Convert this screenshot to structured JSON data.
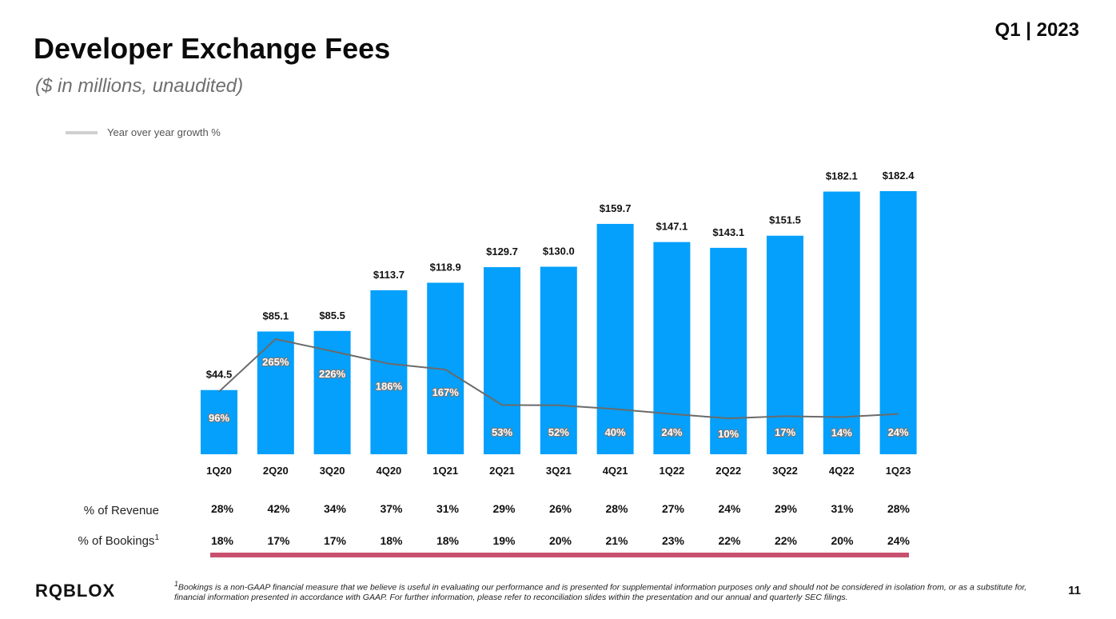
{
  "header": {
    "title": "Developer Exchange Fees",
    "subtitle": "($ in millions, unaudited)",
    "period": "Q1 | 2023"
  },
  "colors": {
    "bar": "#04a0fb",
    "growth_line": "#6b6b6b",
    "legend_line": "#d0d0d0",
    "underline": "#c8506e"
  },
  "chart_data": {
    "type": "bar",
    "title": "Developer Exchange Fees",
    "categories": [
      "1Q20",
      "2Q20",
      "3Q20",
      "4Q20",
      "1Q21",
      "2Q21",
      "3Q21",
      "4Q21",
      "1Q22",
      "2Q22",
      "3Q22",
      "4Q22",
      "1Q23"
    ],
    "series": [
      {
        "values": [
          44.5,
          85.1,
          85.5,
          113.7,
          118.9,
          129.7,
          130.0,
          159.7,
          147.1,
          143.1,
          151.5,
          182.1,
          182.4
        ],
        "labels": [
          "$44.5",
          "$85.1",
          "$85.5",
          "$113.7",
          "$118.9",
          "$129.7",
          "$130.0",
          "$159.7",
          "$147.1",
          "$143.1",
          "$151.5",
          "$182.1",
          "$182.4"
        ]
      },
      {
        "name": "Year over year growth %",
        "type": "line",
        "values": [
          96,
          265,
          226,
          186,
          167,
          53,
          52,
          40,
          24,
          10,
          17,
          14,
          24
        ],
        "labels": [
          "96%",
          "265%",
          "226%",
          "186%",
          "167%",
          "53%",
          "52%",
          "40%",
          "24%",
          "10%",
          "17%",
          "14%",
          "24%"
        ]
      }
    ],
    "legend": "top-left",
    "grid": false
  },
  "rows": {
    "revenue": {
      "label": "% of Revenue",
      "values": [
        "28%",
        "42%",
        "34%",
        "37%",
        "31%",
        "29%",
        "26%",
        "28%",
        "27%",
        "24%",
        "29%",
        "31%",
        "28%"
      ]
    },
    "bookings": {
      "label": "% of Bookings",
      "sup": "1",
      "values": [
        "18%",
        "17%",
        "17%",
        "18%",
        "18%",
        "19%",
        "20%",
        "21%",
        "23%",
        "22%",
        "22%",
        "20%",
        "24%"
      ]
    }
  },
  "footer": {
    "logo": "RQBLOX",
    "footnote_sup": "1",
    "footnote": "Bookings is a non-GAAP financial measure that we believe is useful in evaluating our performance and is presented for supplemental information purposes only and should not be considered in isolation from, or as a substitute for, financial information presented in accordance with GAAP. For further information, please refer to reconciliation slides within the presentation and our annual and quarterly SEC filings.",
    "page_number": "11"
  }
}
